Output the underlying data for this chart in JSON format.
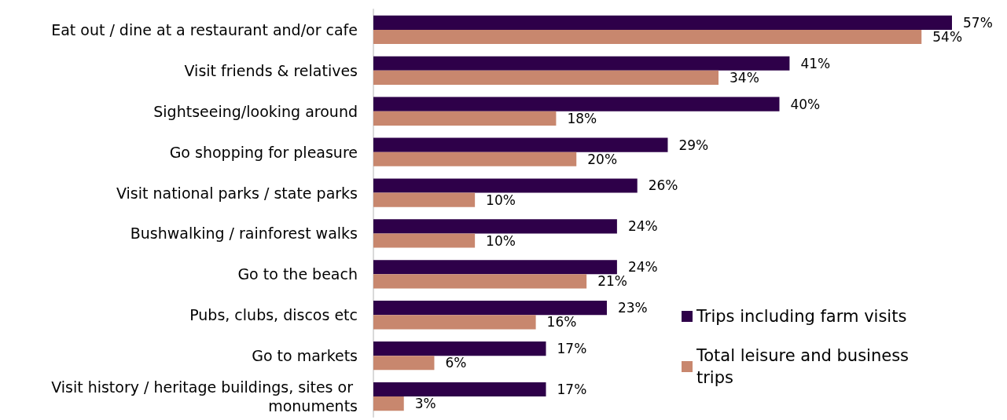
{
  "chart_data": {
    "type": "bar",
    "orientation": "horizontal",
    "legend": "bottom right",
    "categories": [
      "Eat out / dine at a restaurant and/or cafe",
      "Visit friends & relatives",
      "Sightseeing/looking around",
      "Go shopping for pleasure",
      "Visit national parks / state parks",
      "Bushwalking / rainforest walks",
      "Go to the beach",
      "Pubs, clubs, discos etc",
      "Go to markets",
      "Visit history / heritage buildings, sites or monuments"
    ],
    "series": [
      {
        "name": "Trips including farm visits",
        "color": "#2e0049",
        "values": [
          57,
          41,
          40,
          29,
          26,
          24,
          24,
          23,
          17,
          17
        ],
        "value_labels": [
          "57%",
          "41%",
          "40%",
          "29%",
          "26%",
          "24%",
          "24%",
          "23%",
          "17%",
          "17%"
        ]
      },
      {
        "name": "Total leisure and business trips",
        "color": "#c8876e",
        "values": [
          54,
          34,
          18,
          20,
          10,
          10,
          21,
          16,
          6,
          3
        ],
        "value_labels": [
          "54%",
          "34%",
          "18%",
          "20%",
          "10%",
          "10%",
          "21%",
          "16%",
          "6%",
          "3%"
        ]
      }
    ]
  }
}
